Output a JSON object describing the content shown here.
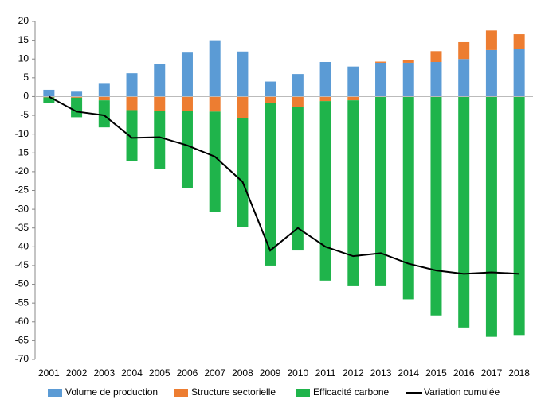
{
  "chart_data": {
    "type": "bar",
    "stacked": true,
    "categories": [
      "2001",
      "2002",
      "2003",
      "2004",
      "2005",
      "2006",
      "2007",
      "2008",
      "2009",
      "2010",
      "2011",
      "2012",
      "2013",
      "2014",
      "2015",
      "2016",
      "2017",
      "2018"
    ],
    "series": [
      {
        "name": "Volume de production",
        "color": "#5b9bd5",
        "values": [
          1.8,
          1.3,
          3.4,
          6.2,
          8.6,
          11.7,
          15,
          12,
          4,
          6,
          9.2,
          8,
          9,
          9,
          9.2,
          10,
          12.4,
          12.6
        ]
      },
      {
        "name": "Structure sectorielle",
        "color": "#ed7d31",
        "values": [
          -0.2,
          -0.3,
          -1,
          -3.6,
          -3.8,
          -3.8,
          -4,
          -5.8,
          -1.8,
          -2.8,
          -1.2,
          -1,
          0.3,
          0.8,
          2.9,
          4.5,
          5.2,
          4
        ]
      },
      {
        "name": "Efficacité carbone",
        "color": "#1fb44b",
        "values": [
          -1.6,
          -5.2,
          -7.2,
          -13.6,
          -15.5,
          -20.5,
          -26.8,
          -29,
          -43.2,
          -38.2,
          -47.8,
          -49.5,
          -50.5,
          -54,
          -58.3,
          -61.5,
          -64,
          -63.5
        ]
      },
      {
        "name": "Variation cumulée",
        "color": "#000000",
        "type": "line",
        "values": [
          0,
          -4,
          -5,
          -11,
          -10.8,
          -13,
          -16,
          -22.7,
          -41,
          -35,
          -40,
          -42.5,
          -41.7,
          -44.5,
          -46.3,
          -47.2,
          -46.8,
          -47.2
        ]
      }
    ],
    "ylim": [
      -70,
      20
    ],
    "yticks": [
      -70,
      -65,
      -60,
      -55,
      -50,
      -45,
      -40,
      -35,
      -30,
      -25,
      -20,
      -15,
      -10,
      -5,
      0,
      5,
      10,
      15,
      20
    ],
    "grid": false,
    "legend": "bottom"
  }
}
